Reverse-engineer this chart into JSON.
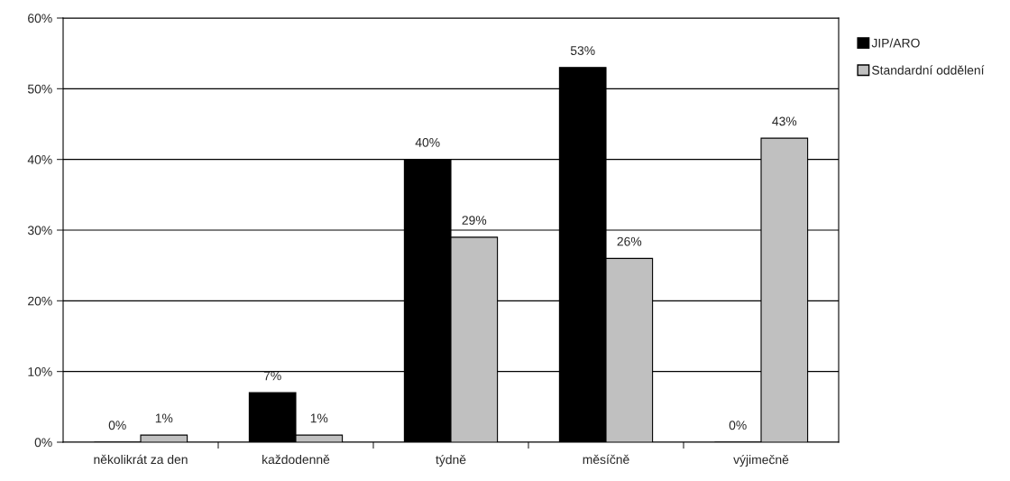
{
  "chart_data": {
    "type": "bar",
    "categories": [
      "několikrát za den",
      "každodenně",
      "týdně",
      "měsíčně",
      "výjimečně"
    ],
    "series": [
      {
        "name": "JIP/ARO",
        "color": "#000000",
        "values": [
          0,
          7,
          40,
          53,
          0
        ],
        "value_labels": [
          "0%",
          "7%",
          "40%",
          "53%",
          "0%"
        ]
      },
      {
        "name": "Standardní oddělení",
        "color": "#c0c0c0",
        "values": [
          1,
          1,
          29,
          26,
          43
        ],
        "value_labels": [
          "1%",
          "1%",
          "29%",
          "26%",
          "43%"
        ]
      }
    ],
    "ylim": [
      0,
      60
    ],
    "yticks": [
      {
        "value": 0,
        "label": "0%"
      },
      {
        "value": 10,
        "label": "10%"
      },
      {
        "value": 20,
        "label": "20%"
      },
      {
        "value": 30,
        "label": "30%"
      },
      {
        "value": 40,
        "label": "40%"
      },
      {
        "value": 50,
        "label": "50%"
      },
      {
        "value": 60,
        "label": "60%"
      }
    ],
    "grid": "y",
    "legend": "right"
  }
}
